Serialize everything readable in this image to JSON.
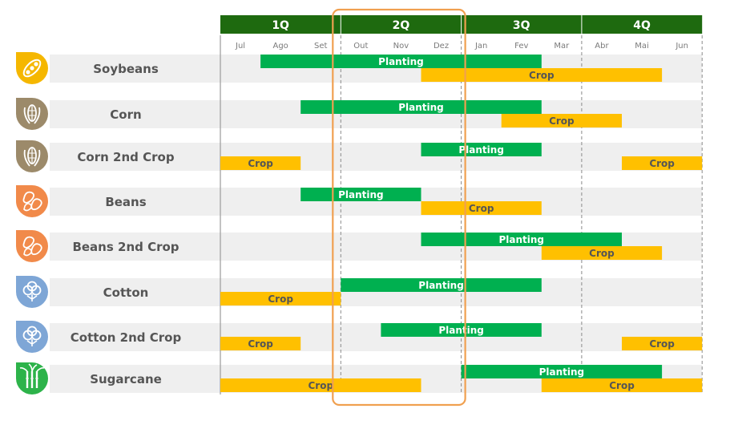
{
  "colors": {
    "header": "#1e6a0f",
    "planting": "#00b050",
    "crop": "#ffc000",
    "row_bg": "#efefef",
    "highlight": "#f0a050",
    "label_text": "#555555",
    "month_text": "#7a7a7a"
  },
  "chart_data": {
    "type": "gantt",
    "quarters": [
      "1Q",
      "2Q",
      "3Q",
      "4Q"
    ],
    "months": [
      "Jul",
      "Ago",
      "Set",
      "Out",
      "Nov",
      "Dez",
      "Jan",
      "Fev",
      "Mar",
      "Abr",
      "Mai",
      "Jun"
    ],
    "highlight_quarter": "2Q",
    "legend": {
      "planting": "Planting",
      "crop": "Crop"
    },
    "rows": [
      {
        "name": "Soybeans",
        "icon": "soybean-icon",
        "icon_color": "#f5b700",
        "planting": [
          {
            "start": "Ago",
            "end": "Fev"
          }
        ],
        "crop": [
          {
            "start": "Dez",
            "end": "Mai"
          }
        ]
      },
      {
        "name": "Corn",
        "icon": "corn-icon",
        "icon_color": "#9c8a6a",
        "planting": [
          {
            "start": "Set",
            "end": "Fev"
          }
        ],
        "crop": [
          {
            "start": "Fev",
            "end": "Abr"
          }
        ]
      },
      {
        "name": "Corn 2nd Crop",
        "icon": "corn-icon",
        "icon_color": "#9c8a6a",
        "planting": [
          {
            "start": "Dez",
            "end": "Fev"
          }
        ],
        "crop": [
          {
            "start": "Jul",
            "end": "Ago"
          },
          {
            "start": "Mai",
            "end": "Jun"
          }
        ]
      },
      {
        "name": "Beans",
        "icon": "beans-icon",
        "icon_color": "#f18a4a",
        "planting": [
          {
            "start": "Set",
            "end": "Nov"
          }
        ],
        "crop": [
          {
            "start": "Dez",
            "end": "Fev"
          }
        ]
      },
      {
        "name": "Beans 2nd Crop",
        "icon": "beans-icon",
        "icon_color": "#f18a4a",
        "planting": [
          {
            "start": "Dez",
            "end": "Abr"
          }
        ],
        "crop": [
          {
            "start": "Mar",
            "end": "Mai"
          }
        ]
      },
      {
        "name": "Cotton",
        "icon": "cotton-icon",
        "icon_color": "#7ea6d6",
        "planting": [
          {
            "start": "Out",
            "end": "Fev"
          }
        ],
        "crop": [
          {
            "start": "Jul",
            "end": "Set"
          }
        ]
      },
      {
        "name": "Cotton 2nd Crop",
        "icon": "cotton-icon",
        "icon_color": "#7ea6d6",
        "planting": [
          {
            "start": "Nov",
            "end": "Fev"
          }
        ],
        "crop": [
          {
            "start": "Jul",
            "end": "Ago"
          },
          {
            "start": "Mai",
            "end": "Jun"
          }
        ]
      },
      {
        "name": "Sugarcane",
        "icon": "sugarcane-icon",
        "icon_color": "#2db34a",
        "planting": [
          {
            "start": "Jan",
            "end": "Mai"
          }
        ],
        "crop": [
          {
            "start": "Jul",
            "end": "Nov"
          },
          {
            "start": "Mar",
            "end": "Jun"
          }
        ]
      }
    ]
  }
}
